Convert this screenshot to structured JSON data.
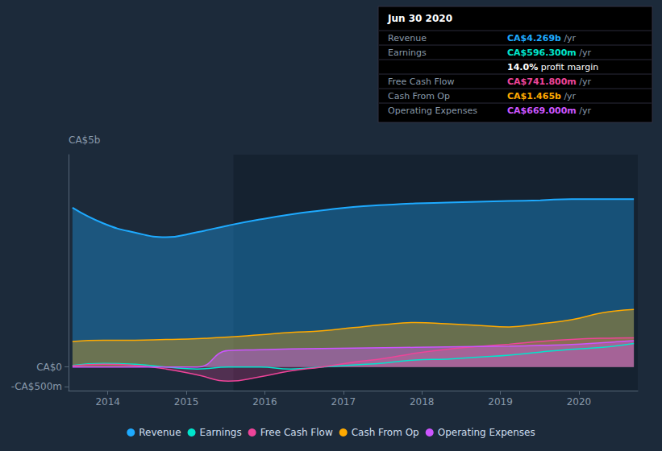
{
  "chart_data": {
    "type": "line",
    "ylabel": "CA$5b",
    "x": [
      2013.55,
      2013.947222,
      2014.344444,
      2014.741667,
      2015.138889,
      2015.536111,
      2015.933333,
      2016.330556,
      2016.727778,
      2017.125,
      2017.522222,
      2017.919444,
      2018.316667,
      2018.713889,
      2019.111111,
      2019.508333,
      2019.905556,
      2020.302778,
      2020.7
    ],
    "series": [
      {
        "name": "Revenue",
        "color": "#1eaaff",
        "values": [
          4050000000.0,
          3650000000.0,
          3420000000.0,
          3300000000.0,
          3430000000.0,
          3600000000.0,
          3750000000.0,
          3880000000.0,
          3980000000.0,
          4070000000.0,
          4120000000.0,
          4160000000.0,
          4180000000.0,
          4200000000.0,
          4220000000.0,
          4240000000.0,
          4270000000.0,
          4270000000.0,
          4269000000.0
        ]
      },
      {
        "name": "Earnings",
        "color": "#00e5cc",
        "values": [
          40000000.0,
          90000000.0,
          70000000.0,
          0.0,
          -50000000.0,
          0.0,
          0.0,
          -50000000.0,
          0.0,
          50000000.0,
          100000000.0,
          180000000.0,
          200000000.0,
          250000000.0,
          300000000.0,
          380000000.0,
          450000000.0,
          500000000.0,
          596000000.0
        ]
      },
      {
        "name": "Free Cash Flow",
        "color": "#ee4499",
        "values": [
          30000000.0,
          70000000.0,
          40000000.0,
          -50000000.0,
          -200000000.0,
          -360000000.0,
          -250000000.0,
          -100000000.0,
          0.0,
          120000000.0,
          220000000.0,
          350000000.0,
          450000000.0,
          520000000.0,
          580000000.0,
          650000000.0,
          700000000.0,
          730000000.0,
          742000000.0
        ]
      },
      {
        "name": "Cash From Op",
        "color": "#ffaa00",
        "values": [
          650000000.0,
          680000000.0,
          680000000.0,
          700000000.0,
          720000000.0,
          760000000.0,
          820000000.0,
          880000000.0,
          920000000.0,
          1000000000.0,
          1080000000.0,
          1130000000.0,
          1100000000.0,
          1060000000.0,
          1020000000.0,
          1100000000.0,
          1200000000.0,
          1380000000.0,
          1465000000.0
        ]
      },
      {
        "name": "Operating Expenses",
        "color": "#cc55ff",
        "values": [
          0.0,
          0.0,
          0.0,
          0.0,
          0.0,
          420000000.0,
          440000000.0,
          460000000.0,
          470000000.0,
          480000000.0,
          490000000.0,
          500000000.0,
          510000000.0,
          520000000.0,
          530000000.0,
          550000000.0,
          570000000.0,
          620000000.0,
          669000000.0
        ]
      }
    ],
    "xlim": [
      2013.5,
      2020.75
    ],
    "xticks": [
      2014,
      2015,
      2016,
      2017,
      2018,
      2019,
      2020
    ],
    "ylim": [
      -600000000,
      5400000000
    ],
    "yticks": [
      {
        "value": 0,
        "label": "CA$0"
      },
      {
        "value": -500000000,
        "label": "-CA$500m"
      }
    ],
    "shaded_region": [
      2015.6,
      2020.75
    ],
    "grid": false,
    "legend": "bottom",
    "annotations": {
      "title": "Jun 30 2020",
      "rows": [
        {
          "label": "Revenue",
          "value": "CA$4.269b",
          "suffix": " /yr",
          "color": "#1eaaff"
        },
        {
          "label": "Earnings",
          "value": "CA$596.300m",
          "suffix": " /yr",
          "color": "#00e5cc"
        },
        {
          "value": "14.0%",
          "suffix": " profit margin",
          "color": "#ffffff"
        },
        {
          "label": "Free Cash Flow",
          "value": "CA$741.800m",
          "suffix": " /yr",
          "color": "#ee4499"
        },
        {
          "label": "Cash From Op",
          "value": "CA$1.465b",
          "suffix": " /yr",
          "color": "#ffaa00"
        },
        {
          "label": "Operating Expenses",
          "value": "CA$669.000m",
          "suffix": " /yr",
          "color": "#cc55ff"
        }
      ]
    }
  }
}
